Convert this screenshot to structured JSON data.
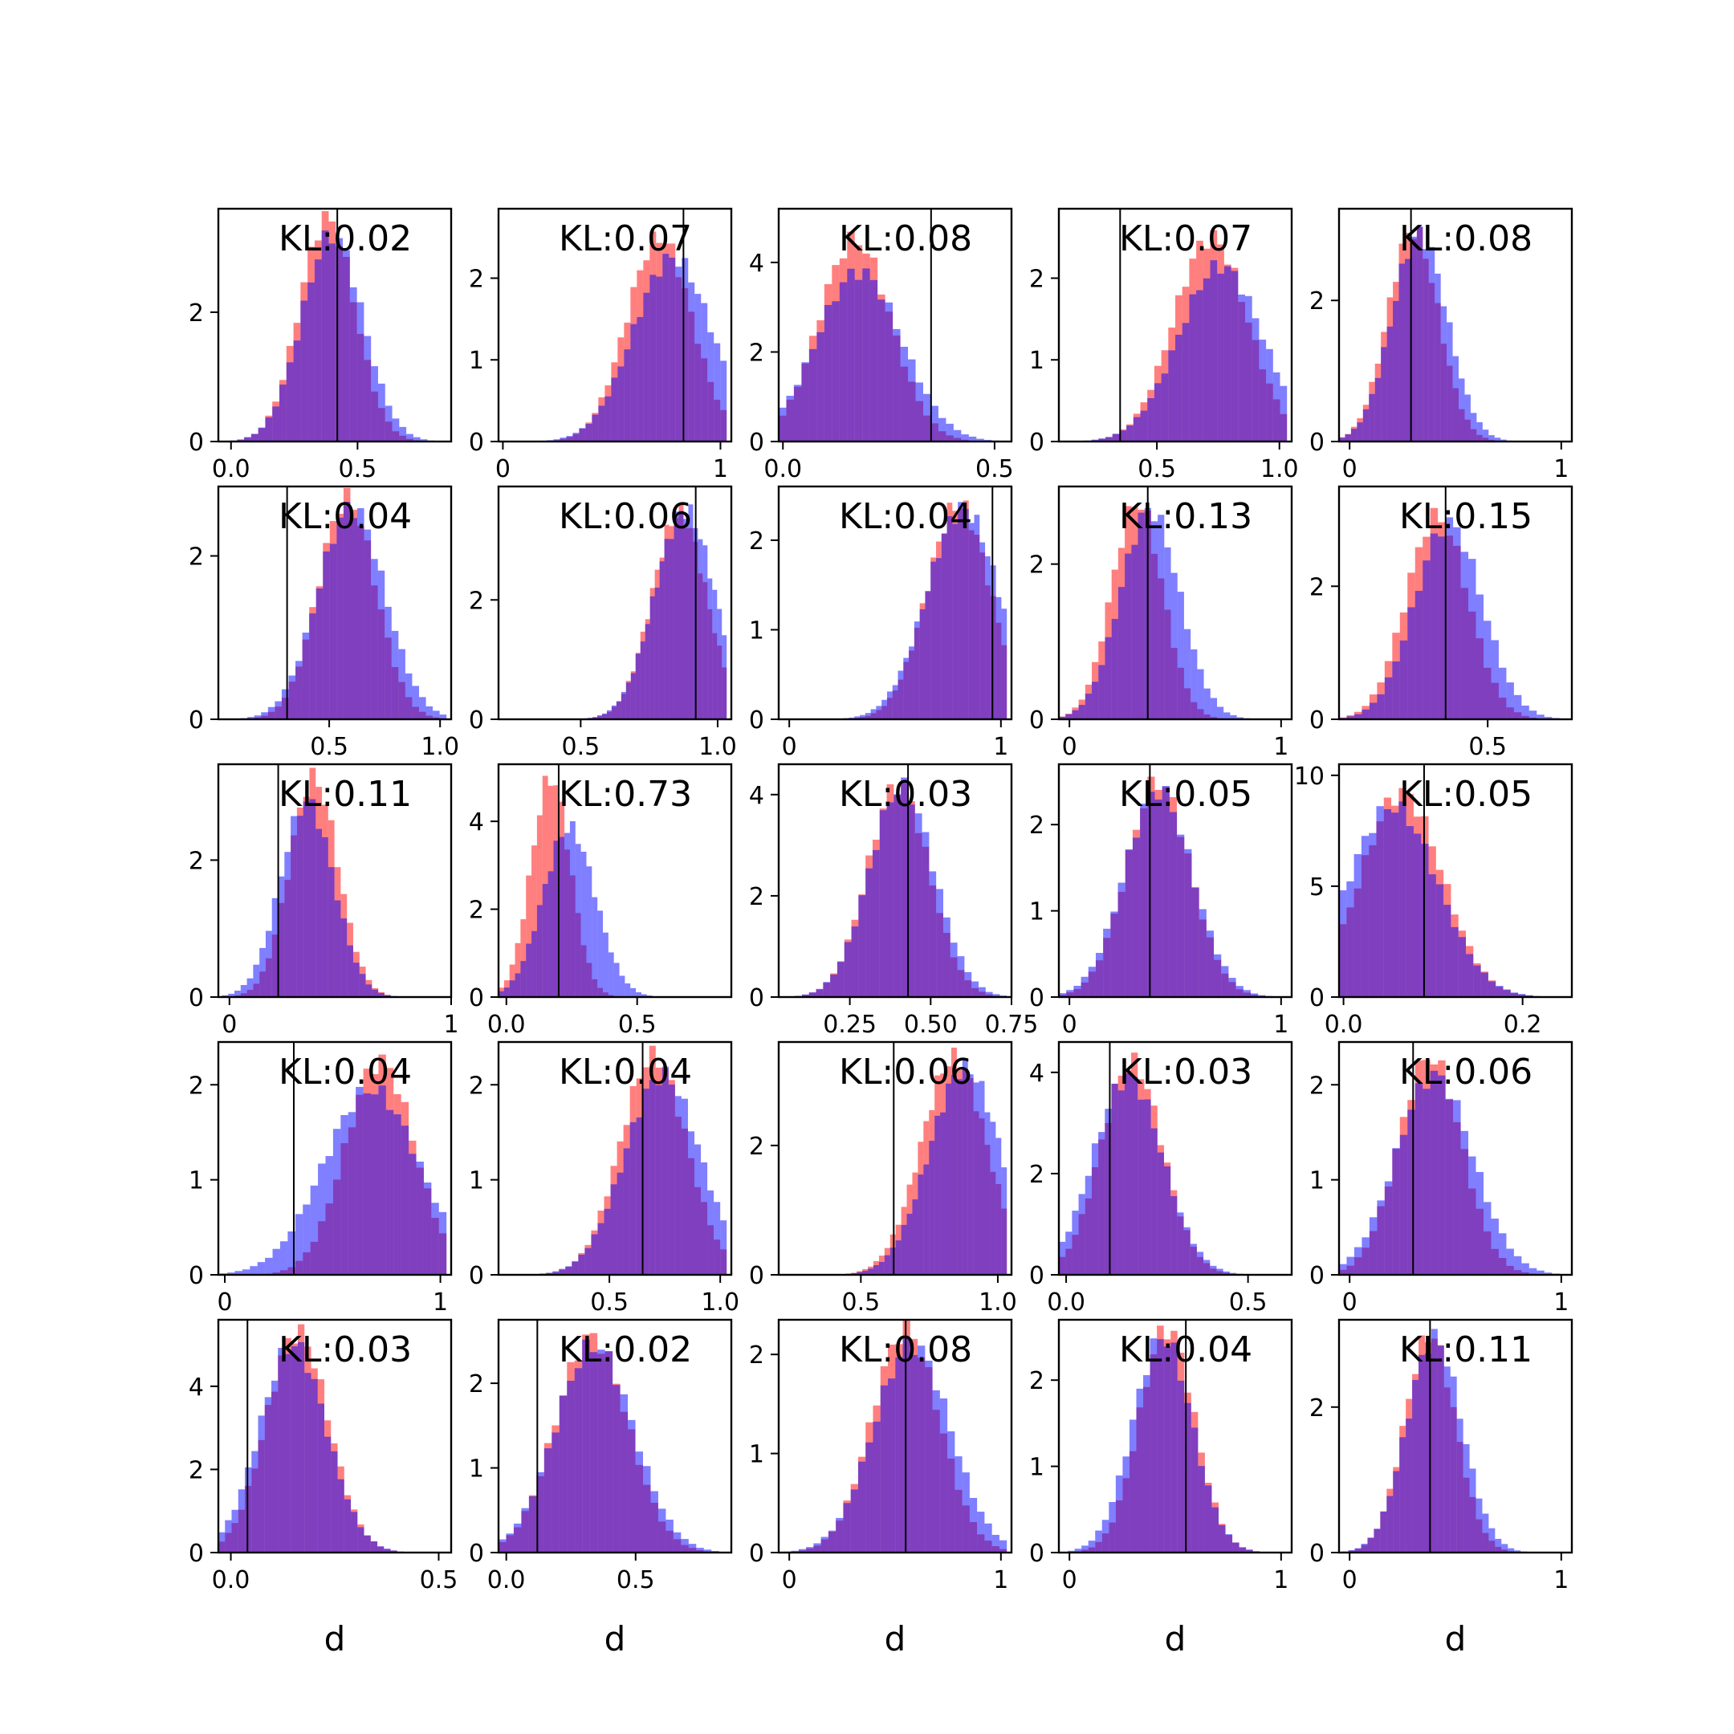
{
  "figure": {
    "grid": {
      "rows": 5,
      "cols": 5
    },
    "colors": {
      "series_a": "#ff0000",
      "series_b": "#0000ff",
      "overlap_alpha": 0.5,
      "axis": "#000000"
    }
  },
  "chart_data": [
    {
      "type": "histogram",
      "annotation": "KL:0.02",
      "xlim": [
        -0.05,
        0.87
      ],
      "ylim": [
        0,
        3.6
      ],
      "xticks": [
        0.0,
        0.5
      ],
      "xtick_labels": [
        "0.0",
        "0.5"
      ],
      "yticks": [
        0,
        2
      ],
      "ytick_labels": [
        "0",
        "2"
      ],
      "vline": 0.42,
      "xlabel": "",
      "a": {
        "mean": 0.38,
        "sd": 0.11,
        "peak": 3.45
      },
      "b": {
        "mean": 0.4,
        "sd": 0.12,
        "peak": 3.2
      }
    },
    {
      "type": "histogram",
      "annotation": "KL:0.07",
      "xlim": [
        -0.02,
        1.05
      ],
      "ylim": [
        0,
        2.85
      ],
      "xticks": [
        0,
        1
      ],
      "xtick_labels": [
        "0",
        "1"
      ],
      "yticks": [
        0,
        1,
        2
      ],
      "ytick_labels": [
        "0",
        "1",
        "2"
      ],
      "vline": 0.83,
      "xlabel": "",
      "a": {
        "mean": 0.72,
        "sd": 0.15,
        "peak": 2.5
      },
      "b": {
        "mean": 0.78,
        "sd": 0.18,
        "peak": 2.25
      }
    },
    {
      "type": "histogram",
      "annotation": "KL:0.08",
      "xlim": [
        -0.01,
        0.54
      ],
      "ylim": [
        0,
        5.2
      ],
      "xticks": [
        0.0,
        0.5
      ],
      "xtick_labels": [
        "0.0",
        "0.5"
      ],
      "yticks": [
        0,
        2,
        4
      ],
      "ytick_labels": [
        "0",
        "2",
        "4"
      ],
      "vline": 0.35,
      "xlabel": "",
      "a": {
        "mean": 0.17,
        "sd": 0.085,
        "peak": 4.5
      },
      "b": {
        "mean": 0.18,
        "sd": 0.1,
        "peak": 3.8
      }
    },
    {
      "type": "histogram",
      "annotation": "KL:0.07",
      "xlim": [
        0.1,
        1.05
      ],
      "ylim": [
        0,
        2.85
      ],
      "xticks": [
        0.5,
        1.0
      ],
      "xtick_labels": [
        "0.5",
        "1.0"
      ],
      "yticks": [
        0,
        1,
        2
      ],
      "ytick_labels": [
        "0",
        "1",
        "2"
      ],
      "vline": 0.35,
      "xlabel": "",
      "a": {
        "mean": 0.72,
        "sd": 0.15,
        "peak": 2.5
      },
      "b": {
        "mean": 0.76,
        "sd": 0.17,
        "peak": 2.15
      }
    },
    {
      "type": "histogram",
      "annotation": "KL:0.08",
      "xlim": [
        -0.05,
        1.05
      ],
      "ylim": [
        0,
        3.3
      ],
      "xticks": [
        0,
        1
      ],
      "xtick_labels": [
        "0",
        "1"
      ],
      "yticks": [
        0,
        2
      ],
      "ytick_labels": [
        "0",
        "2"
      ],
      "vline": 0.29,
      "xlabel": "",
      "a": {
        "mean": 0.3,
        "sd": 0.12,
        "peak": 3.0
      },
      "b": {
        "mean": 0.33,
        "sd": 0.13,
        "peak": 2.95
      }
    },
    {
      "type": "histogram",
      "annotation": "KL:0.04",
      "xlim": [
        0.0,
        1.05
      ],
      "ylim": [
        0,
        2.85
      ],
      "xticks": [
        0.5,
        1.0
      ],
      "xtick_labels": [
        "0.5",
        "1.0"
      ],
      "yticks": [
        0,
        2
      ],
      "ytick_labels": [
        "0",
        "2"
      ],
      "vline": 0.31,
      "xlabel": "",
      "a": {
        "mean": 0.58,
        "sd": 0.13,
        "peak": 2.7
      },
      "b": {
        "mean": 0.6,
        "sd": 0.15,
        "peak": 2.6
      }
    },
    {
      "type": "histogram",
      "annotation": "KL:0.06",
      "xlim": [
        0.2,
        1.05
      ],
      "ylim": [
        0,
        3.9
      ],
      "xticks": [
        0.5,
        1.0
      ],
      "xtick_labels": [
        "0.5",
        "1.0"
      ],
      "yticks": [
        0,
        2
      ],
      "ytick_labels": [
        "0",
        "2"
      ],
      "vline": 0.92,
      "xlabel": "",
      "a": {
        "mean": 0.86,
        "sd": 0.1,
        "peak": 3.45
      },
      "b": {
        "mean": 0.88,
        "sd": 0.11,
        "peak": 3.5
      }
    },
    {
      "type": "histogram",
      "annotation": "KL:0.04",
      "xlim": [
        -0.05,
        1.05
      ],
      "ylim": [
        0,
        2.6
      ],
      "xticks": [
        0,
        1
      ],
      "xtick_labels": [
        "0",
        "1"
      ],
      "yticks": [
        0,
        1,
        2
      ],
      "ytick_labels": [
        "0",
        "1",
        "2"
      ],
      "vline": 0.96,
      "xlabel": "",
      "a": {
        "mean": 0.8,
        "sd": 0.15,
        "peak": 2.4
      },
      "b": {
        "mean": 0.82,
        "sd": 0.17,
        "peak": 2.35
      }
    },
    {
      "type": "histogram",
      "annotation": "KL:0.13",
      "xlim": [
        -0.05,
        1.05
      ],
      "ylim": [
        0,
        3.0
      ],
      "xticks": [
        0,
        1
      ],
      "xtick_labels": [
        "0",
        "1"
      ],
      "yticks": [
        0,
        2
      ],
      "ytick_labels": [
        "0",
        "2"
      ],
      "vline": 0.37,
      "xlabel": "",
      "a": {
        "mean": 0.32,
        "sd": 0.12,
        "peak": 2.8
      },
      "b": {
        "mean": 0.38,
        "sd": 0.14,
        "peak": 2.7
      }
    },
    {
      "type": "histogram",
      "annotation": "KL:0.15",
      "xlim": [
        -0.03,
        0.8
      ],
      "ylim": [
        0,
        3.5
      ],
      "xticks": [
        0.5
      ],
      "xtick_labels": [
        "0.5"
      ],
      "yticks": [
        0,
        2
      ],
      "ytick_labels": [
        "0",
        "2"
      ],
      "vline": 0.35,
      "xlabel": "",
      "a": {
        "mean": 0.32,
        "sd": 0.11,
        "peak": 3.05
      },
      "b": {
        "mean": 0.36,
        "sd": 0.12,
        "peak": 2.95
      }
    },
    {
      "type": "histogram",
      "annotation": "KL:0.11",
      "xlim": [
        -0.05,
        1.0
      ],
      "ylim": [
        0,
        3.4
      ],
      "xticks": [
        0,
        1
      ],
      "xtick_labels": [
        "0",
        "1"
      ],
      "yticks": [
        0,
        2
      ],
      "ytick_labels": [
        "0",
        "2"
      ],
      "vline": 0.22,
      "xlabel": "",
      "a": {
        "mean": 0.38,
        "sd": 0.11,
        "peak": 3.2
      },
      "b": {
        "mean": 0.35,
        "sd": 0.12,
        "peak": 2.85
      }
    },
    {
      "type": "histogram",
      "annotation": "KL:0.73",
      "xlim": [
        -0.03,
        0.86
      ],
      "ylim": [
        0,
        5.3
      ],
      "xticks": [
        0.0,
        0.5
      ],
      "xtick_labels": [
        "0.0",
        "0.5"
      ],
      "yticks": [
        0,
        2,
        4
      ],
      "ytick_labels": [
        "0",
        "2",
        "4"
      ],
      "vline": 0.2,
      "xlabel": "",
      "a": {
        "mean": 0.17,
        "sd": 0.075,
        "peak": 5.0
      },
      "b": {
        "mean": 0.24,
        "sd": 0.1,
        "peak": 3.85
      }
    },
    {
      "type": "histogram",
      "annotation": "KL:0.03",
      "xlim": [
        0.03,
        0.75
      ],
      "ylim": [
        0,
        4.6
      ],
      "xticks": [
        0.25,
        0.5,
        0.75
      ],
      "xtick_labels": [
        "0.25",
        "0.50",
        "0.75"
      ],
      "yticks": [
        0,
        2,
        4
      ],
      "ytick_labels": [
        "0",
        "2",
        "4"
      ],
      "vline": 0.43,
      "xlabel": "",
      "a": {
        "mean": 0.4,
        "sd": 0.095,
        "peak": 4.2
      },
      "b": {
        "mean": 0.41,
        "sd": 0.1,
        "peak": 4.15
      }
    },
    {
      "type": "histogram",
      "annotation": "KL:0.05",
      "xlim": [
        -0.05,
        1.05
      ],
      "ylim": [
        0,
        2.7
      ],
      "xticks": [
        0,
        1
      ],
      "xtick_labels": [
        "0",
        "1"
      ],
      "yticks": [
        0,
        1,
        2
      ],
      "ytick_labels": [
        "0",
        "1",
        "2"
      ],
      "vline": 0.38,
      "xlabel": "",
      "a": {
        "mean": 0.42,
        "sd": 0.15,
        "peak": 2.5
      },
      "b": {
        "mean": 0.42,
        "sd": 0.16,
        "peak": 2.4
      }
    },
    {
      "type": "histogram",
      "annotation": "KL:0.05",
      "xlim": [
        -0.005,
        0.255
      ],
      "ylim": [
        0,
        10.5
      ],
      "xticks": [
        0.0,
        0.2
      ],
      "xtick_labels": [
        "0.0",
        "0.2"
      ],
      "yticks": [
        0,
        5,
        10
      ],
      "ytick_labels": [
        "0",
        "5",
        "10"
      ],
      "vline": 0.09,
      "xlabel": "",
      "a": {
        "mean": 0.065,
        "sd": 0.045,
        "peak": 9.2
      },
      "b": {
        "mean": 0.055,
        "sd": 0.05,
        "peak": 8.6
      }
    },
    {
      "type": "histogram",
      "annotation": "KL:0.04",
      "xlim": [
        -0.03,
        1.05
      ],
      "ylim": [
        0,
        2.45
      ],
      "xticks": [
        0,
        1
      ],
      "xtick_labels": [
        "0",
        "1"
      ],
      "yticks": [
        0,
        1,
        2
      ],
      "ytick_labels": [
        "0",
        "1",
        "2"
      ],
      "vline": 0.32,
      "xlabel": "",
      "a": {
        "mean": 0.72,
        "sd": 0.16,
        "peak": 2.25
      },
      "b": {
        "mean": 0.68,
        "sd": 0.22,
        "peak": 1.95
      }
    },
    {
      "type": "histogram",
      "annotation": "KL:0.04",
      "xlim": [
        0.0,
        1.05
      ],
      "ylim": [
        0,
        2.45
      ],
      "xticks": [
        0.5,
        1.0
      ],
      "xtick_labels": [
        "0.5",
        "1.0"
      ],
      "yticks": [
        0,
        1,
        2
      ],
      "ytick_labels": [
        "0",
        "1",
        "2"
      ],
      "vline": 0.65,
      "xlabel": "",
      "a": {
        "mean": 0.7,
        "sd": 0.15,
        "peak": 2.3
      },
      "b": {
        "mean": 0.74,
        "sd": 0.17,
        "peak": 2.1
      }
    },
    {
      "type": "histogram",
      "annotation": "KL:0.06",
      "xlim": [
        0.2,
        1.05
      ],
      "ylim": [
        0,
        3.6
      ],
      "xticks": [
        0.5,
        1.0
      ],
      "xtick_labels": [
        "0.5",
        "1.0"
      ],
      "yticks": [
        0,
        2
      ],
      "ytick_labels": [
        "0",
        "2"
      ],
      "vline": 0.62,
      "xlabel": "",
      "a": {
        "mean": 0.84,
        "sd": 0.12,
        "peak": 3.35
      },
      "b": {
        "mean": 0.88,
        "sd": 0.13,
        "peak": 3.2
      }
    },
    {
      "type": "histogram",
      "annotation": "KL:0.03",
      "xlim": [
        -0.02,
        0.62
      ],
      "ylim": [
        0,
        4.6
      ],
      "xticks": [
        0.0,
        0.5
      ],
      "xtick_labels": [
        "0.0",
        "0.5"
      ],
      "yticks": [
        0,
        2,
        4
      ],
      "ytick_labels": [
        "0",
        "2",
        "4"
      ],
      "vline": 0.12,
      "xlabel": "",
      "a": {
        "mean": 0.18,
        "sd": 0.085,
        "peak": 4.2
      },
      "b": {
        "mean": 0.17,
        "sd": 0.095,
        "peak": 3.9
      }
    },
    {
      "type": "histogram",
      "annotation": "KL:0.06",
      "xlim": [
        -0.05,
        1.05
      ],
      "ylim": [
        0,
        2.45
      ],
      "xticks": [
        0,
        1
      ],
      "xtick_labels": [
        "0",
        "1"
      ],
      "yticks": [
        0,
        1,
        2
      ],
      "ytick_labels": [
        "0",
        "1",
        "2"
      ],
      "vline": 0.3,
      "xlabel": "",
      "a": {
        "mean": 0.38,
        "sd": 0.15,
        "peak": 2.3
      },
      "b": {
        "mean": 0.4,
        "sd": 0.18,
        "peak": 2.1
      }
    },
    {
      "type": "histogram",
      "annotation": "KL:0.03",
      "xlim": [
        -0.03,
        0.53
      ],
      "ylim": [
        0,
        5.6
      ],
      "xticks": [
        0.0,
        0.5
      ],
      "xtick_labels": [
        "0.0",
        "0.5"
      ],
      "yticks": [
        0,
        2,
        4
      ],
      "ytick_labels": [
        "0",
        "2",
        "4"
      ],
      "vline": 0.04,
      "xlabel": "d",
      "a": {
        "mean": 0.16,
        "sd": 0.075,
        "peak": 5.3
      },
      "b": {
        "mean": 0.15,
        "sd": 0.08,
        "peak": 5.0
      }
    },
    {
      "type": "histogram",
      "annotation": "KL:0.02",
      "xlim": [
        -0.03,
        0.87
      ],
      "ylim": [
        0,
        2.75
      ],
      "xticks": [
        0.0,
        0.5
      ],
      "xtick_labels": [
        "0.0",
        "0.5"
      ],
      "yticks": [
        0,
        1,
        2
      ],
      "ytick_labels": [
        "0",
        "1",
        "2"
      ],
      "vline": 0.12,
      "xlabel": "d",
      "a": {
        "mean": 0.33,
        "sd": 0.14,
        "peak": 2.55
      },
      "b": {
        "mean": 0.34,
        "sd": 0.15,
        "peak": 2.45
      }
    },
    {
      "type": "histogram",
      "annotation": "KL:0.08",
      "xlim": [
        -0.05,
        1.05
      ],
      "ylim": [
        0,
        2.35
      ],
      "xticks": [
        0,
        1
      ],
      "xtick_labels": [
        "0",
        "1"
      ],
      "yticks": [
        0,
        1,
        2
      ],
      "ytick_labels": [
        "0",
        "1",
        "2"
      ],
      "vline": 0.55,
      "xlabel": "d",
      "a": {
        "mean": 0.55,
        "sd": 0.16,
        "peak": 2.25
      },
      "b": {
        "mean": 0.58,
        "sd": 0.18,
        "peak": 2.1
      }
    },
    {
      "type": "histogram",
      "annotation": "KL:0.04",
      "xlim": [
        -0.05,
        1.05
      ],
      "ylim": [
        0,
        2.7
      ],
      "xticks": [
        0,
        1
      ],
      "xtick_labels": [
        "0",
        "1"
      ],
      "yticks": [
        0,
        1,
        2
      ],
      "ytick_labels": [
        "0",
        "1",
        "2"
      ],
      "vline": 0.55,
      "xlabel": "d",
      "a": {
        "mean": 0.46,
        "sd": 0.13,
        "peak": 2.6
      },
      "b": {
        "mean": 0.44,
        "sd": 0.14,
        "peak": 2.5
      }
    },
    {
      "type": "histogram",
      "annotation": "KL:0.11",
      "xlim": [
        -0.05,
        1.05
      ],
      "ylim": [
        0,
        3.2
      ],
      "xticks": [
        0,
        1
      ],
      "xtick_labels": [
        "0",
        "1"
      ],
      "yticks": [
        0,
        2
      ],
      "ytick_labels": [
        "0",
        "2"
      ],
      "vline": 0.38,
      "xlabel": "d",
      "a": {
        "mean": 0.38,
        "sd": 0.12,
        "peak": 3.0
      },
      "b": {
        "mean": 0.4,
        "sd": 0.13,
        "peak": 2.95
      }
    }
  ]
}
